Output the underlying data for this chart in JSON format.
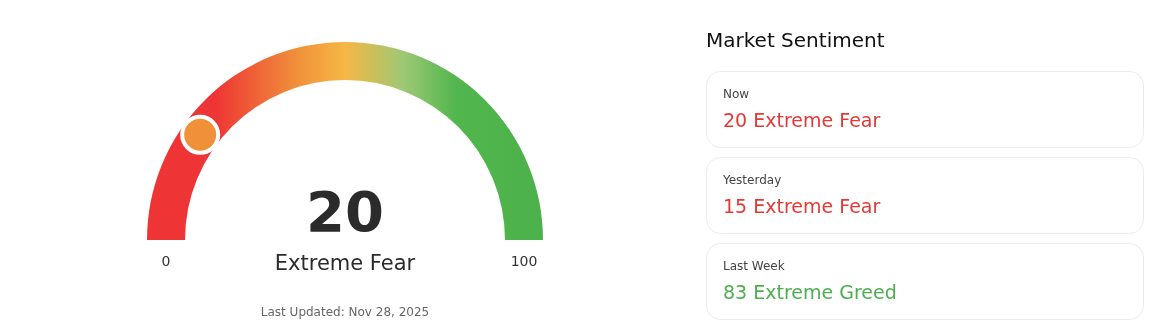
{
  "chart_data": [
    {
      "type": "other",
      "categories": [
        "Extreme Fear"
      ],
      "values": [
        20
      ],
      "color": "#f0913a",
      "data_labels": true,
      "annotations": [
        "0",
        "100",
        "Last Updated: Nov 28, 2025"
      ]
    },
    {
      "type": "other",
      "title": "Market Sentiment",
      "categories": [
        "Now",
        "Yesterday",
        "Last Week"
      ],
      "values": [
        20,
        15,
        83
      ],
      "value_labels": [
        "20 Extreme Fear",
        "15 Extreme Fear",
        "83 Extreme Greed"
      ],
      "colors": [
        "#e53935",
        "#e53935",
        "#4caf50"
      ]
    }
  ]
}
